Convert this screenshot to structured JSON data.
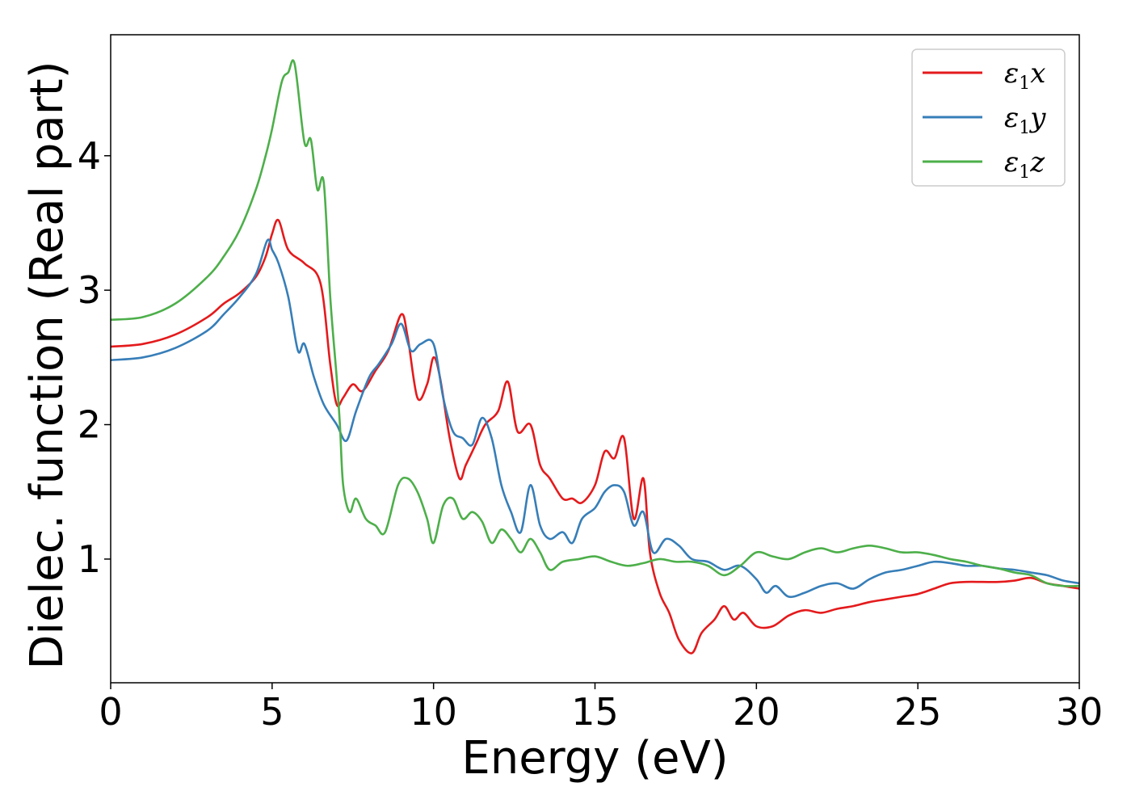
{
  "chart_data": {
    "type": "line",
    "title": "",
    "xlabel": "Energy (eV)",
    "ylabel": "Dielec. function (Real part)",
    "xlim": [
      0,
      30
    ],
    "ylim": [
      0.08,
      4.9
    ],
    "xticks": [
      0,
      5,
      10,
      15,
      20,
      25,
      30
    ],
    "yticks": [
      1,
      2,
      3,
      4
    ],
    "grid": false,
    "legend_position": "top-right",
    "series": [
      {
        "name": "ε1x",
        "legend_main": "ε",
        "legend_sub": "1",
        "legend_tail": "x",
        "color": "#e41a1c",
        "x": [
          0,
          1,
          2,
          3,
          3.5,
          4,
          4.5,
          4.8,
          5.0,
          5.2,
          5.5,
          6.0,
          6.5,
          6.8,
          7.0,
          7.2,
          7.5,
          7.8,
          8.2,
          8.6,
          9.0,
          9.2,
          9.5,
          9.8,
          10.0,
          10.2,
          10.5,
          10.8,
          11.0,
          11.3,
          11.6,
          12.0,
          12.3,
          12.6,
          13.0,
          13.3,
          13.6,
          14.0,
          14.3,
          14.6,
          15.0,
          15.3,
          15.6,
          15.9,
          16.2,
          16.5,
          16.7,
          17.0,
          17.3,
          17.6,
          18.0,
          18.3,
          18.7,
          19.0,
          19.3,
          19.6,
          20.0,
          20.5,
          21.0,
          21.5,
          22.0,
          22.5,
          23.0,
          23.5,
          24.0,
          24.5,
          25.0,
          25.5,
          26.0,
          26.5,
          27.0,
          27.5,
          28.0,
          28.5,
          29.0,
          29.5,
          30.0
        ],
        "y": [
          2.58,
          2.6,
          2.67,
          2.8,
          2.9,
          2.98,
          3.1,
          3.25,
          3.42,
          3.52,
          3.3,
          3.2,
          3.05,
          2.45,
          2.15,
          2.2,
          2.3,
          2.25,
          2.4,
          2.55,
          2.82,
          2.65,
          2.2,
          2.3,
          2.5,
          2.35,
          1.9,
          1.6,
          1.7,
          1.85,
          2.0,
          2.1,
          2.32,
          1.95,
          2.0,
          1.7,
          1.6,
          1.45,
          1.45,
          1.42,
          1.55,
          1.8,
          1.75,
          1.9,
          1.3,
          1.6,
          1.05,
          0.75,
          0.6,
          0.4,
          0.3,
          0.45,
          0.55,
          0.65,
          0.55,
          0.6,
          0.5,
          0.5,
          0.58,
          0.62,
          0.6,
          0.63,
          0.65,
          0.68,
          0.7,
          0.72,
          0.74,
          0.78,
          0.82,
          0.83,
          0.83,
          0.83,
          0.84,
          0.86,
          0.82,
          0.8,
          0.78
        ]
      },
      {
        "name": "ε1y",
        "legend_main": "ε",
        "legend_sub": "1",
        "legend_tail": "y",
        "color": "#377eb8",
        "x": [
          0,
          1,
          2,
          3,
          3.5,
          4,
          4.5,
          4.85,
          5.0,
          5.2,
          5.5,
          5.8,
          6.0,
          6.3,
          6.6,
          7.0,
          7.3,
          7.6,
          8.0,
          8.3,
          8.7,
          9.0,
          9.3,
          9.6,
          10.0,
          10.3,
          10.6,
          10.9,
          11.2,
          11.5,
          11.8,
          12.1,
          12.4,
          12.7,
          13.0,
          13.3,
          13.6,
          14.0,
          14.3,
          14.6,
          15.0,
          15.3,
          15.6,
          15.9,
          16.2,
          16.5,
          16.8,
          17.2,
          17.6,
          18.0,
          18.5,
          19.0,
          19.5,
          20.0,
          20.3,
          20.6,
          21.0,
          21.5,
          22.0,
          22.5,
          23.0,
          23.5,
          24.0,
          24.5,
          25.0,
          25.5,
          26.0,
          26.5,
          27.0,
          27.5,
          28.0,
          28.5,
          29.0,
          29.5,
          30.0
        ],
        "y": [
          2.48,
          2.5,
          2.57,
          2.7,
          2.82,
          2.95,
          3.12,
          3.37,
          3.3,
          3.2,
          2.95,
          2.55,
          2.6,
          2.35,
          2.15,
          2.0,
          1.88,
          2.1,
          2.35,
          2.45,
          2.6,
          2.75,
          2.55,
          2.6,
          2.6,
          2.2,
          1.95,
          1.9,
          1.85,
          2.05,
          1.9,
          1.55,
          1.35,
          1.2,
          1.55,
          1.25,
          1.15,
          1.2,
          1.12,
          1.3,
          1.38,
          1.5,
          1.55,
          1.5,
          1.25,
          1.35,
          1.05,
          1.15,
          1.1,
          1.0,
          0.98,
          0.92,
          0.95,
          0.85,
          0.75,
          0.8,
          0.72,
          0.75,
          0.8,
          0.82,
          0.78,
          0.85,
          0.9,
          0.92,
          0.95,
          0.98,
          0.97,
          0.95,
          0.95,
          0.93,
          0.92,
          0.9,
          0.88,
          0.84,
          0.82
        ]
      },
      {
        "name": "ε1z",
        "legend_main": "ε",
        "legend_sub": "1",
        "legend_tail": "z",
        "color": "#4daf4a",
        "x": [
          0,
          1,
          2,
          3,
          3.5,
          4,
          4.5,
          4.8,
          5.0,
          5.3,
          5.5,
          5.7,
          6.0,
          6.2,
          6.4,
          6.6,
          6.8,
          7.0,
          7.1,
          7.2,
          7.4,
          7.6,
          7.9,
          8.2,
          8.5,
          8.9,
          9.2,
          9.5,
          9.8,
          10.0,
          10.3,
          10.6,
          10.9,
          11.2,
          11.5,
          11.8,
          12.1,
          12.4,
          12.7,
          13.0,
          13.3,
          13.6,
          14.0,
          14.5,
          15.0,
          15.5,
          16.0,
          16.5,
          17.0,
          17.5,
          18.0,
          18.5,
          19.0,
          19.5,
          20.0,
          20.5,
          21.0,
          21.5,
          22.0,
          22.5,
          23.0,
          23.5,
          24.0,
          24.5,
          25.0,
          25.5,
          26.0,
          26.5,
          27.0,
          27.5,
          28.0,
          28.5,
          29.0,
          29.5,
          30.0
        ],
        "y": [
          2.78,
          2.8,
          2.9,
          3.1,
          3.25,
          3.45,
          3.75,
          4.0,
          4.2,
          4.55,
          4.62,
          4.68,
          4.1,
          4.12,
          3.75,
          3.8,
          2.95,
          2.35,
          2.0,
          1.55,
          1.35,
          1.45,
          1.3,
          1.25,
          1.2,
          1.55,
          1.6,
          1.5,
          1.3,
          1.12,
          1.4,
          1.45,
          1.3,
          1.35,
          1.28,
          1.12,
          1.22,
          1.15,
          1.05,
          1.15,
          1.05,
          0.92,
          0.98,
          1.0,
          1.02,
          0.98,
          0.95,
          0.97,
          1.0,
          0.98,
          0.98,
          0.95,
          0.88,
          0.95,
          1.05,
          1.02,
          1.0,
          1.05,
          1.08,
          1.05,
          1.08,
          1.1,
          1.08,
          1.05,
          1.05,
          1.03,
          1.0,
          0.98,
          0.95,
          0.93,
          0.9,
          0.88,
          0.82,
          0.8,
          0.8
        ]
      }
    ]
  }
}
